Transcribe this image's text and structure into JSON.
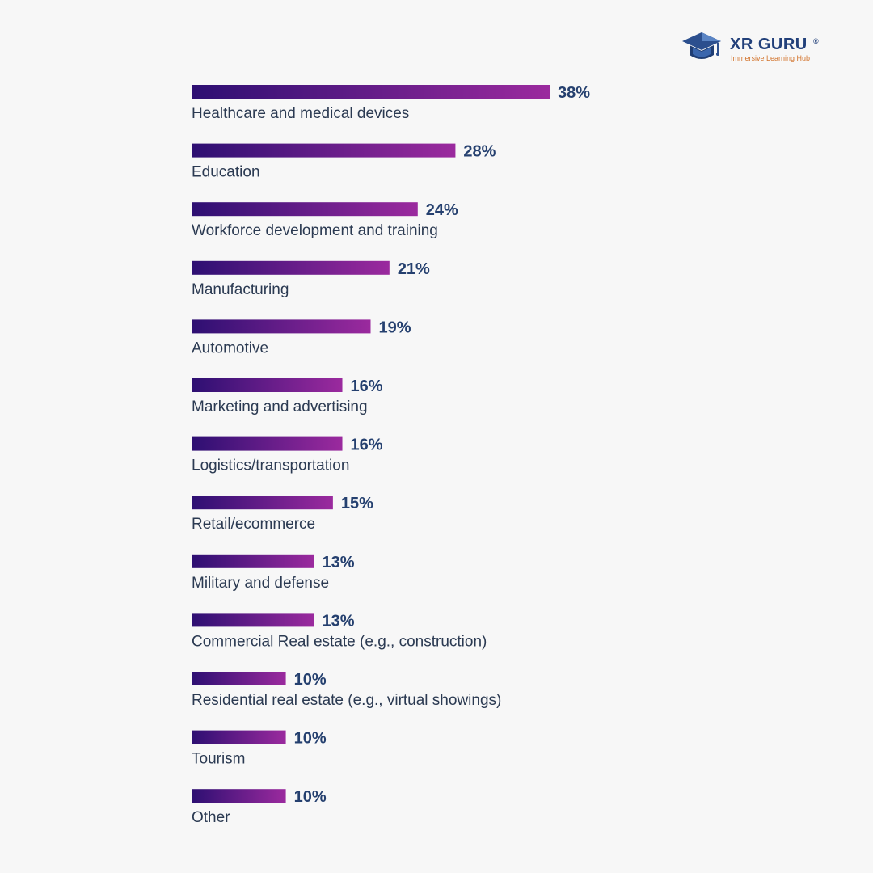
{
  "brand": {
    "name": "XR GURU",
    "registered": "®",
    "tagline": "Immersive Learning Hub",
    "primary_color": "#22407a",
    "accent_color": "#d3752e",
    "icon": "graduation-cap-icon"
  },
  "colors": {
    "bar_start": "#2d0f72",
    "bar_end": "#9b2a9e",
    "label": "#2b3a52",
    "value": "#25406f",
    "background": "#f7f7f7"
  },
  "chart_data": {
    "type": "bar",
    "orientation": "horizontal",
    "title": "",
    "xlabel": "",
    "ylabel": "",
    "xlim": [
      0,
      38
    ],
    "value_suffix": "%",
    "categories": [
      "Healthcare and medical devices",
      "Education",
      "Workforce development and training",
      "Manufacturing",
      "Automotive",
      "Marketing and advertising",
      "Logistics/transportation",
      "Retail/ecommerce",
      "Military and defense",
      "Commercial Real estate (e.g., construction)",
      "Residential real estate (e.g., virtual showings)",
      "Tourism",
      "Other"
    ],
    "values": [
      38,
      28,
      24,
      21,
      19,
      16,
      16,
      15,
      13,
      13,
      10,
      10,
      10
    ],
    "value_labels": [
      "38%",
      "28%",
      "24%",
      "21%",
      "19%",
      "16%",
      "16%",
      "15%",
      "13%",
      "13%",
      "10%",
      "10%",
      "10%"
    ]
  }
}
